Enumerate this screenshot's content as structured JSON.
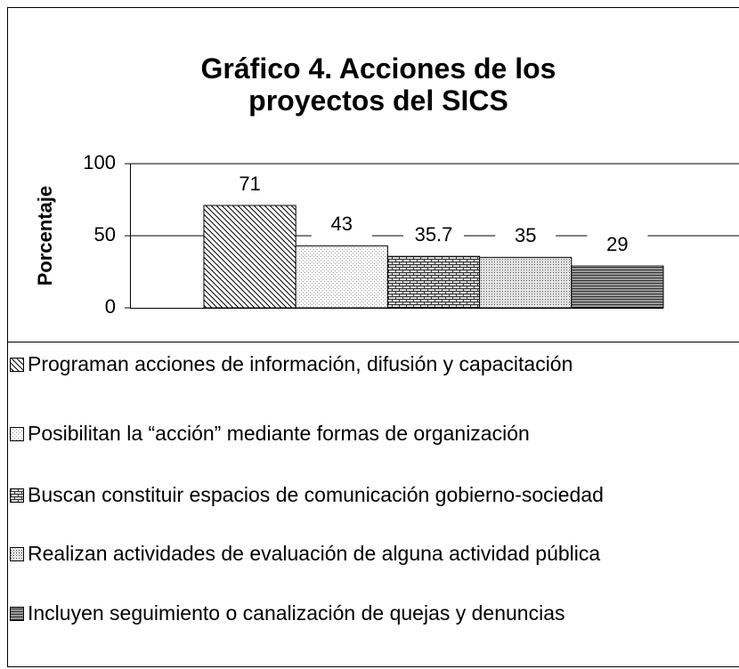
{
  "chart_data": {
    "type": "bar",
    "title": "Gráfico 4. Acciones de los proyectos del SICS",
    "y_label": "Porcentaje",
    "categories": [
      "Programan acciones de información, difusión y capacitación",
      "Posibilitan la “acción” mediante formas de organización",
      "Buscan constituir espacios de comunicación gobierno-sociedad",
      "Realizan actividades de evaluación de alguna actividad pública",
      "Incluyen seguimiento o canalización de quejas y denuncias"
    ],
    "values": [
      71,
      43,
      35.7,
      35,
      29
    ],
    "ylim": [
      0,
      100
    ],
    "yticks": [
      0,
      50,
      100
    ],
    "grid": true,
    "legend": "bottom"
  }
}
